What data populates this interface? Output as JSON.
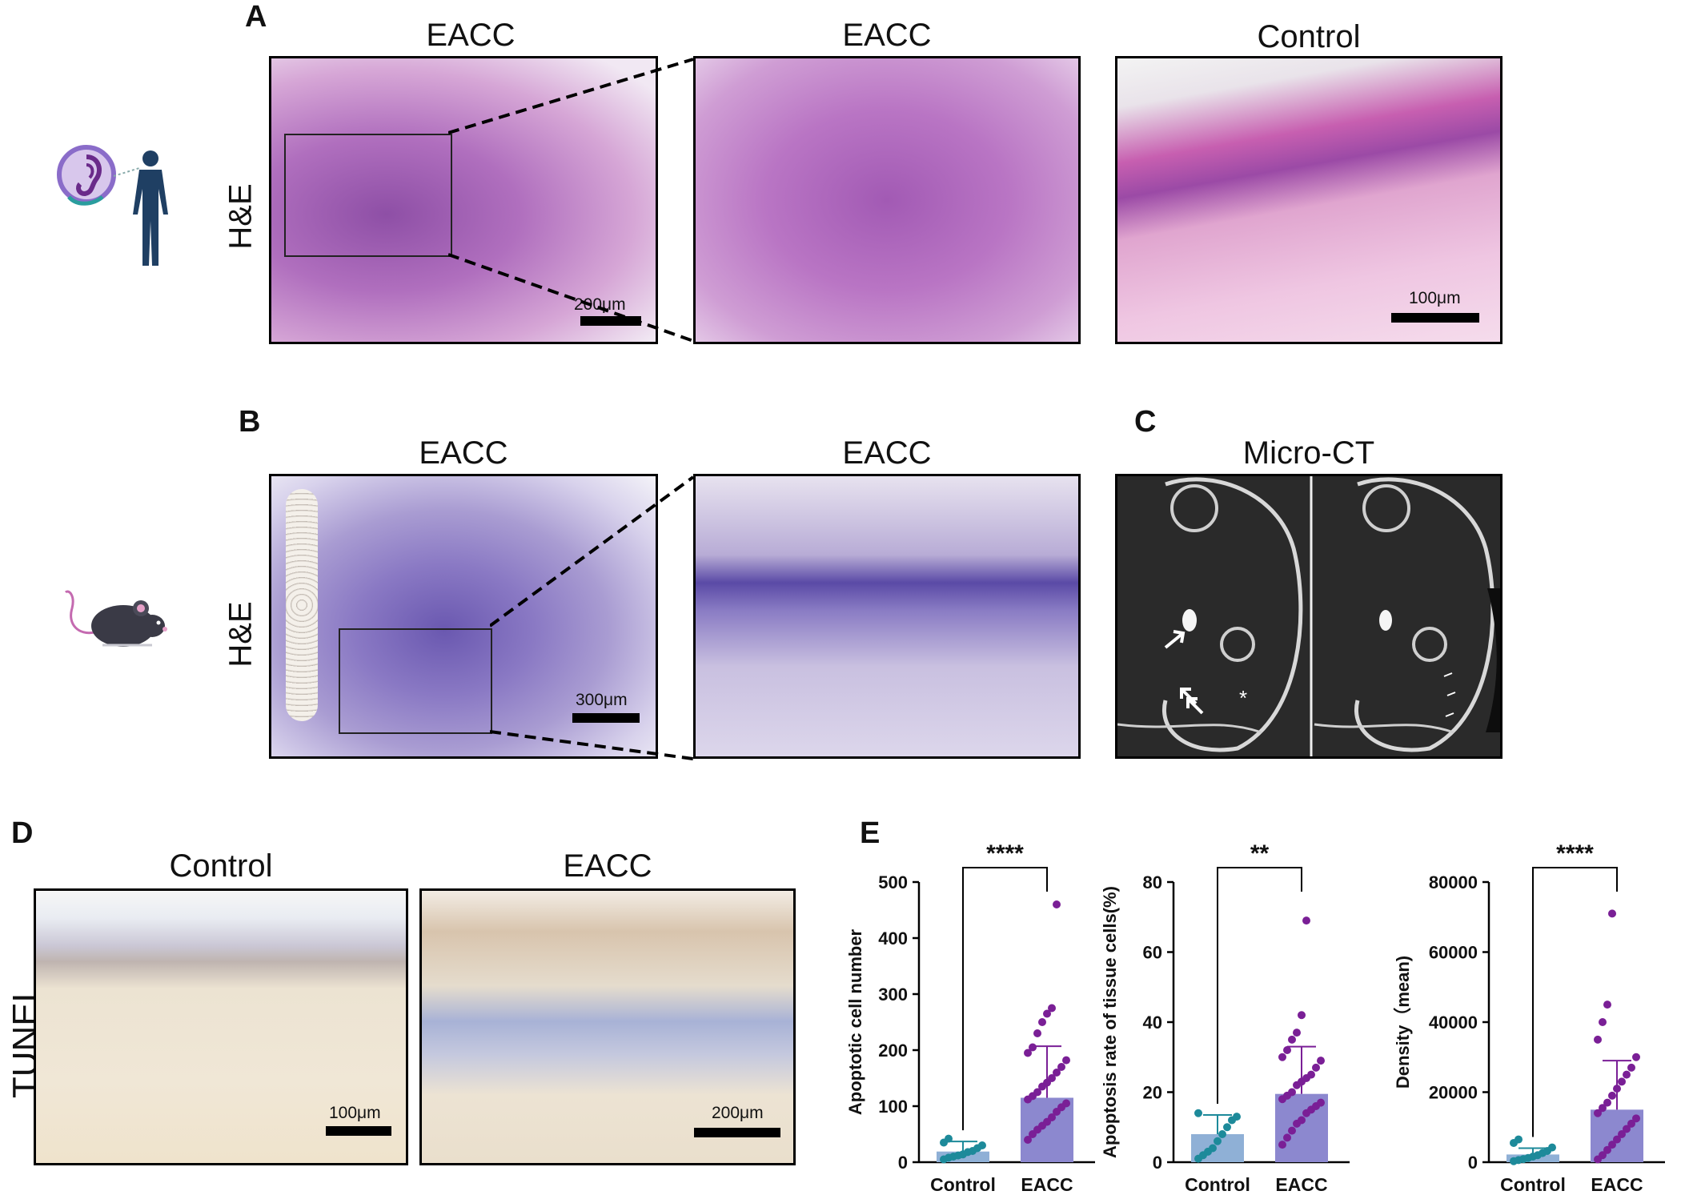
{
  "panels": {
    "A": {
      "letter": "A",
      "row_label": "H&E",
      "images": [
        {
          "title": "EACC",
          "scale": "200μm"
        },
        {
          "title": "EACC"
        },
        {
          "title": "Control",
          "scale": "100μm"
        }
      ]
    },
    "B": {
      "letter": "B",
      "row_label": "H&E",
      "images": [
        {
          "title": "EACC",
          "scale": "300μm"
        },
        {
          "title": "EACC"
        }
      ]
    },
    "C": {
      "letter": "C",
      "title": "Micro-CT",
      "asterisk": "*"
    },
    "D": {
      "letter": "D",
      "row_label": "TUNEL",
      "images": [
        {
          "title": "Control",
          "scale": "100μm"
        },
        {
          "title": "EACC",
          "scale": "200μm"
        }
      ]
    },
    "E": {
      "letter": "E"
    }
  },
  "colors": {
    "control_bar": "#8fb0d6",
    "control_dot": "#1d8a9a",
    "eacc_bar": "#8c88cf",
    "eacc_dot": "#7a1f96",
    "he_stain": "#b05ab8",
    "tunel_bg": "#efe6d3"
  },
  "chart_data": [
    {
      "type": "bar",
      "categories": [
        "Control",
        "EACC"
      ],
      "values": [
        19,
        115
      ],
      "error_upper": [
        37,
        207
      ],
      "ylabel": "Apoptotic cell number",
      "ylim": [
        0,
        500
      ],
      "yticks": [
        "0",
        "100",
        "200",
        "300",
        "400",
        "500"
      ],
      "significance": "****",
      "points": {
        "Control": [
          5,
          8,
          10,
          12,
          14,
          18,
          20,
          25,
          30,
          35,
          42
        ],
        "EACC": [
          40,
          50,
          58,
          65,
          72,
          80,
          90,
          98,
          105,
          112,
          118,
          125,
          135,
          142,
          150,
          160,
          170,
          182,
          195,
          205,
          230,
          250,
          265,
          275,
          460
        ]
      }
    },
    {
      "type": "bar",
      "categories": [
        "Control",
        "EACC"
      ],
      "values": [
        8,
        19.5
      ],
      "error_upper": [
        13.5,
        33
      ],
      "ylabel": "Apoptosis rate of tissue cells(%)",
      "ylim": [
        0,
        80
      ],
      "yticks": [
        "0",
        "20",
        "40",
        "60",
        "80"
      ],
      "significance": "**",
      "points": {
        "Control": [
          1,
          2,
          3,
          4,
          6,
          8,
          10,
          12,
          13,
          14
        ],
        "EACC": [
          5,
          7,
          9,
          11,
          12,
          14,
          15,
          16,
          17,
          18,
          19,
          20,
          22,
          23,
          24,
          25,
          27,
          29,
          30,
          32,
          35,
          37,
          42,
          69
        ]
      }
    },
    {
      "type": "bar",
      "categories": [
        "Control",
        "EACC"
      ],
      "values": [
        2200,
        15000
      ],
      "error_upper": [
        4000,
        29000
      ],
      "ylabel": "Density（mean)",
      "ylim": [
        0,
        80000
      ],
      "yticks": [
        "0",
        "20000",
        "40000",
        "60000",
        "80000"
      ],
      "significance": "****",
      "points": {
        "Control": [
          300,
          600,
          900,
          1200,
          1600,
          2000,
          2600,
          3200,
          4200,
          5500,
          6500
        ],
        "EACC": [
          800,
          2000,
          3500,
          5000,
          6500,
          8000,
          9500,
          11000,
          12500,
          14000,
          15500,
          17000,
          19000,
          21000,
          23000,
          25000,
          27000,
          30000,
          35000,
          40000,
          45000,
          71000
        ]
      }
    }
  ]
}
